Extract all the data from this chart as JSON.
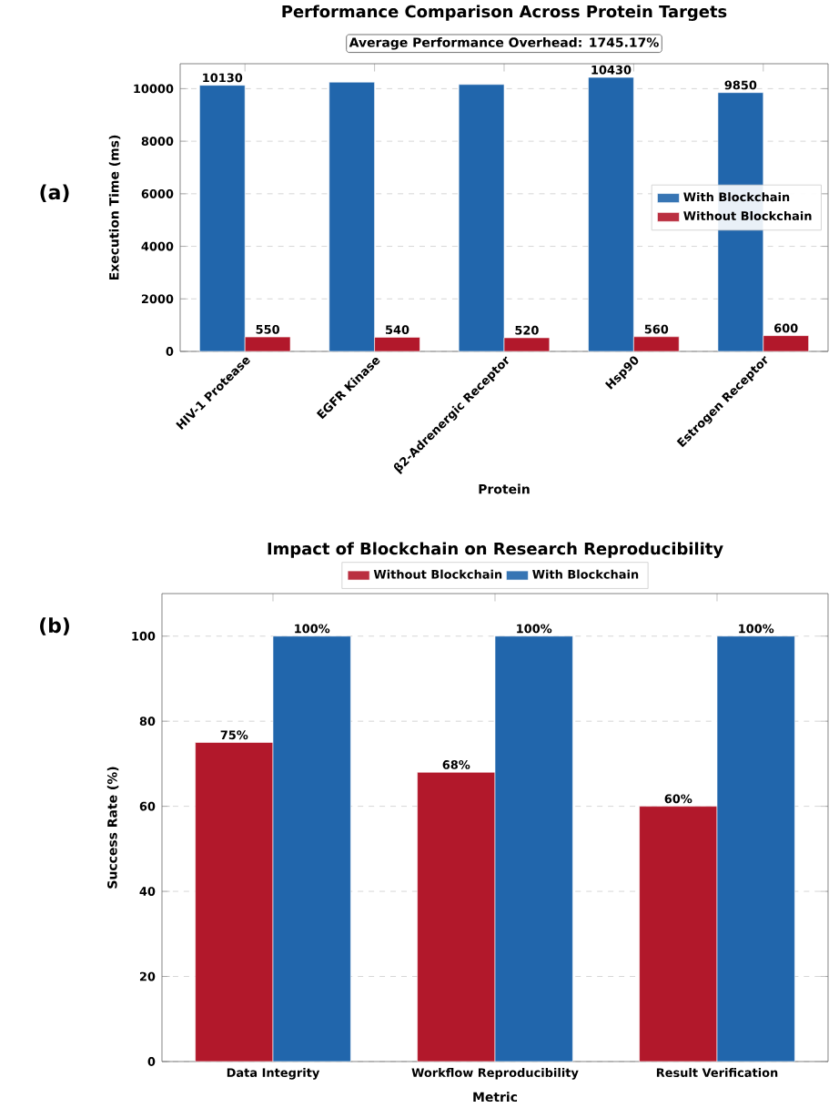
{
  "chart_data": [
    {
      "type": "bar",
      "title": "Performance Comparison Across Protein Targets",
      "xlabel": "Protein",
      "ylabel": "Execution Time (ms)",
      "categories": [
        "HIV-1 Protease",
        "EGFR Kinase",
        "β2-Adrenergic Receptor",
        "Hsp90",
        "Estrogen Receptor"
      ],
      "series": [
        {
          "name": "With Blockchain",
          "color": "#2166ac",
          "values": [
            10130,
            10250,
            10160,
            10430,
            9850
          ],
          "value_labels": [
            "10130",
            null,
            null,
            "10430",
            "9850"
          ]
        },
        {
          "name": "Without Blockchain",
          "color": "#b2182b",
          "values": [
            550,
            540,
            520,
            560,
            600
          ],
          "value_labels": [
            "550",
            "540",
            "520",
            "560",
            "600"
          ]
        }
      ],
      "ylim": [
        0,
        10950
      ],
      "yticks": [
        0,
        2000,
        4000,
        6000,
        8000,
        10000
      ],
      "grid": "y",
      "legend": "right",
      "annotations": [
        "(a)",
        "Average Performance Overhead: 1745.17%"
      ]
    },
    {
      "type": "bar",
      "title": "Impact of Blockchain on Research Reproducibility",
      "xlabel": "Metric",
      "ylabel": "Success Rate (%)",
      "categories": [
        "Data Integrity",
        "Workflow Reproducibility",
        "Result Verification"
      ],
      "series": [
        {
          "name": "Without Blockchain",
          "color": "#b2182b",
          "values": [
            75,
            68,
            60
          ],
          "value_labels": [
            "75%",
            "68%",
            "60%"
          ]
        },
        {
          "name": "With Blockchain",
          "color": "#2166ac",
          "values": [
            100,
            100,
            100
          ],
          "value_labels": [
            "100%",
            "100%",
            "100%"
          ]
        }
      ],
      "ylim": [
        0,
        110
      ],
      "yticks": [
        0,
        20,
        40,
        60,
        80,
        100
      ],
      "grid": "y",
      "legend": "top",
      "annotations": [
        "(b)"
      ]
    }
  ]
}
